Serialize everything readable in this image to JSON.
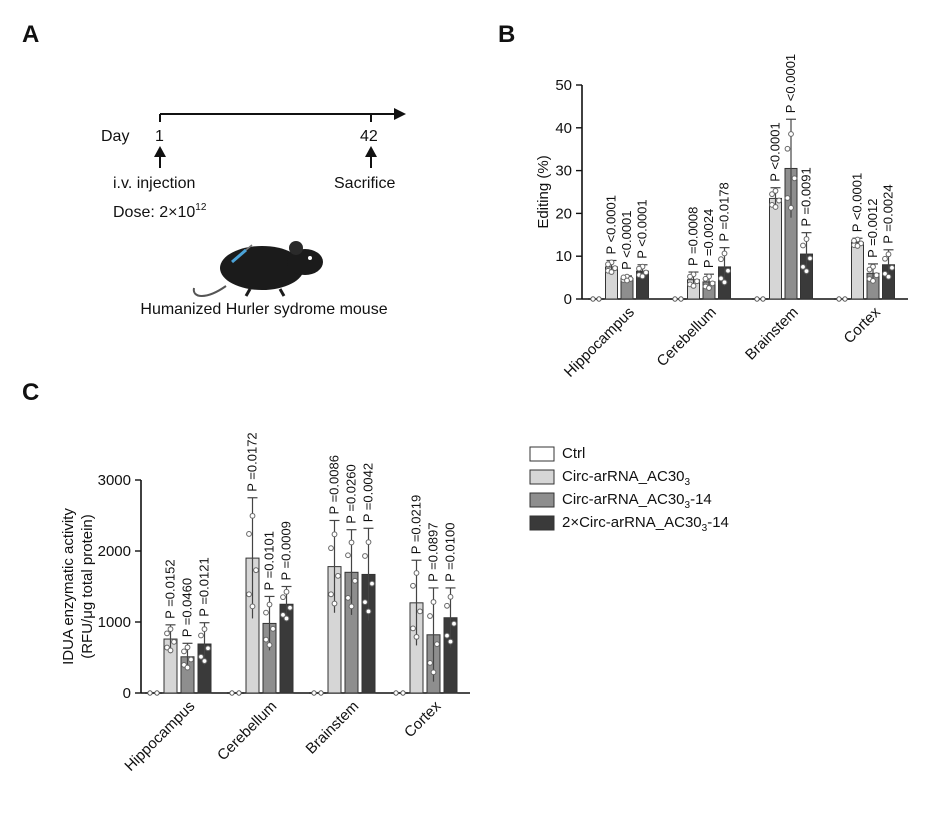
{
  "panels": {
    "a": {
      "label": "A",
      "day_label": "Day",
      "start_day": "1",
      "end_day": "42",
      "injection_label": "i.v. injection",
      "dose_prefix": "Dose: 2×10",
      "dose_exponent": "12",
      "sacrifice_label": "Sacrifice",
      "mouse_caption": "Humanized Hurler sydrome mouse"
    },
    "b": {
      "label": "B"
    },
    "c": {
      "label": "C"
    }
  },
  "legend": [
    {
      "base": "Ctrl",
      "sub": "",
      "tail": "",
      "color": "#ffffff"
    },
    {
      "base": "Circ-arRNA_AC30",
      "sub": "3",
      "tail": "",
      "color": "#d6d6d6"
    },
    {
      "base": "Circ-arRNA_AC30",
      "sub": "3",
      "tail": "-14",
      "color": "#8e8e8e"
    },
    {
      "base": "2×Circ-arRNA_AC30",
      "sub": "3",
      "tail": "-14",
      "color": "#3a3a3a"
    }
  ],
  "chart_data": [
    {
      "type": "bar",
      "panel": "B",
      "ylabel": "Editing (%)",
      "ylim": [
        0,
        50
      ],
      "yticks": [
        0,
        10,
        20,
        30,
        40,
        50
      ],
      "categories": [
        "Hippocampus",
        "Cerebellum",
        "Brainstem",
        "Cortex"
      ],
      "series_colors": [
        "#ffffff",
        "#d6d6d6",
        "#8e8e8e",
        "#3a3a3a"
      ],
      "values": [
        [
          0,
          7.5,
          4.8,
          6.5
        ],
        [
          0,
          4.5,
          4.0,
          7.5
        ],
        [
          0,
          23.5,
          30.5,
          10.5
        ],
        [
          0,
          13.2,
          6.0,
          8.0
        ]
      ],
      "errors": [
        [
          0,
          1.5,
          0.6,
          1.5
        ],
        [
          0,
          1.8,
          1.8,
          4.5
        ],
        [
          0,
          2.5,
          11.5,
          5.0
        ],
        [
          0,
          1.0,
          2.2,
          3.5
        ]
      ],
      "p_values": [
        [
          "",
          "P <0.0001",
          "P <0.0001",
          "P <0.0001"
        ],
        [
          "",
          "P =0.0008",
          "P =0.0024",
          "P =0.0178"
        ],
        [
          "",
          "P <0.0001",
          "P <0.0001",
          "P =0.0091"
        ],
        [
          "",
          "P <0.0001",
          "P =0.0012",
          "P =0.0024"
        ]
      ]
    },
    {
      "type": "bar",
      "panel": "C",
      "ylabel_lines": [
        "IDUA enzymatic activity",
        "(RFU/μg total protein)"
      ],
      "ylim": [
        0,
        3000
      ],
      "yticks": [
        0,
        1000,
        2000,
        3000
      ],
      "categories": [
        "Hippocampus",
        "Cerebellum",
        "Brainstem",
        "Cortex"
      ],
      "series_colors": [
        "#ffffff",
        "#d6d6d6",
        "#8e8e8e",
        "#3a3a3a"
      ],
      "values": [
        [
          0,
          760,
          510,
          690
        ],
        [
          0,
          1900,
          980,
          1250
        ],
        [
          0,
          1780,
          1700,
          1670
        ],
        [
          0,
          1270,
          820,
          1060
        ]
      ],
      "errors": [
        [
          0,
          200,
          190,
          300
        ],
        [
          0,
          850,
          380,
          250
        ],
        [
          0,
          650,
          600,
          650
        ],
        [
          0,
          600,
          660,
          420
        ]
      ],
      "p_values": [
        [
          "",
          "P =0.0152",
          "P =0.0460",
          "P =0.0121"
        ],
        [
          "",
          "P =0.0172",
          "P =0.0101",
          "P =0.0009"
        ],
        [
          "",
          "P =0.0086",
          "P =0.0260",
          "P =0.0042"
        ],
        [
          "",
          "P =0.0219",
          "P =0.0897",
          "P =0.0100"
        ]
      ]
    }
  ]
}
